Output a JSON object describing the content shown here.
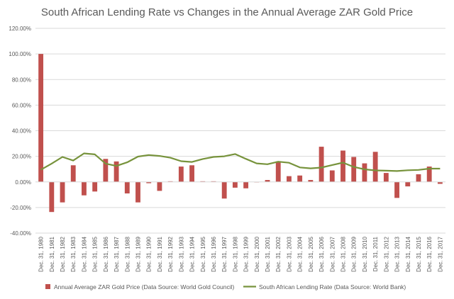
{
  "chart_data": {
    "type": "bar",
    "title": "South African Lending Rate vs Changes in the Annual Average ZAR Gold Price",
    "xlabel": "",
    "ylabel": "",
    "ylim": [
      -40,
      120
    ],
    "y_ticks": [
      "120.00%",
      "100.00%",
      "80.00%",
      "60.00%",
      "40.00%",
      "20.00%",
      "0.00%",
      "-20.00%",
      "-40.00%"
    ],
    "y_tick_values": [
      120,
      100,
      80,
      60,
      40,
      20,
      0,
      -20,
      -40
    ],
    "grid": true,
    "legend_position": "bottom",
    "categories": [
      "Dec. 31, 1980",
      "Dec. 31, 1981",
      "Dec. 31, 1982",
      "Dec. 31, 1983",
      "Dec. 31, 1984",
      "Dec. 31, 1985",
      "Dec. 31, 1986",
      "Dec. 31, 1987",
      "Dec. 31, 1988",
      "Dec. 31, 1989",
      "Dec. 31, 1990",
      "Dec. 31, 1991",
      "Dec. 31, 1992",
      "Dec. 31, 1993",
      "Dec. 31, 1994",
      "Dec. 31, 1995",
      "Dec. 31, 1996",
      "Dec. 31, 1997",
      "Dec. 31, 1998",
      "Dec. 31, 1999",
      "Dec. 31, 2000",
      "Dec. 31, 2001",
      "Dec. 31, 2002",
      "Dec. 31, 2003",
      "Dec. 31, 2004",
      "Dec. 31, 2005",
      "Dec. 31, 2006",
      "Dec. 31, 2007",
      "Dec. 31, 2008",
      "Dec. 31, 2009",
      "Dec. 31, 2010",
      "Dec. 31, 2011",
      "Dec. 31, 2012",
      "Dec. 31, 2013",
      "Dec. 31, 2014",
      "Dec. 31, 2015",
      "Dec. 31, 2016",
      "Dec. 31, 2017"
    ],
    "series": [
      {
        "name": "Annual Average ZAR Gold Price (Data Source: World Gold Council)",
        "kind": "bar",
        "color": "#c0504d",
        "values": [
          100,
          -23.5,
          -16,
          13,
          -10.5,
          -7.5,
          18,
          16,
          -9,
          -16,
          -1,
          -7,
          0.5,
          12,
          13,
          0.5,
          0.5,
          -13,
          -4.5,
          -5,
          0,
          1.5,
          16,
          4.5,
          5,
          1.5,
          27.5,
          9,
          24.5,
          19.5,
          14.5,
          23.5,
          7,
          -12.5,
          -3.5,
          6,
          12,
          -1.5
        ]
      },
      {
        "name": "South African Lending Rate (Data Source: World Bank)",
        "kind": "line",
        "color": "#77933c",
        "values": [
          9.5,
          14.3,
          19.5,
          16.7,
          22.3,
          21.5,
          14.3,
          12.5,
          15.3,
          19.8,
          21,
          20.3,
          18.9,
          16.2,
          15.6,
          17.9,
          19.5,
          20,
          21.8,
          18,
          14.5,
          13.8,
          15.8,
          15,
          11.3,
          10.6,
          11.2,
          13.2,
          15.1,
          11.7,
          9.8,
          9,
          8.8,
          8.5,
          9.1,
          9.4,
          10.4,
          10.4
        ]
      }
    ]
  }
}
